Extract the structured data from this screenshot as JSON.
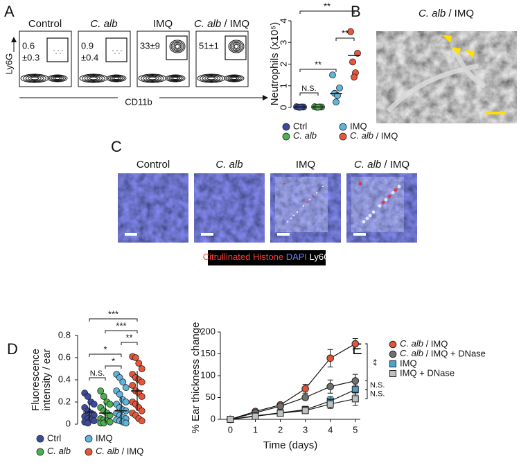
{
  "panel_labels": [
    "A",
    "B",
    "C",
    "D",
    "E"
  ],
  "flow": {
    "ylabel": "Ly6G",
    "xlabel": "CD11b",
    "plots": [
      {
        "title": "Control",
        "gate": [
          "0.6",
          "±0.3"
        ]
      },
      {
        "title": "C. alb",
        "gate": [
          "0.9",
          "±0.4"
        ]
      },
      {
        "title": "IMQ",
        "gate": [
          "33±9"
        ]
      },
      {
        "title": "C. alb / IMQ",
        "gate": [
          "51±1"
        ]
      }
    ]
  },
  "sem": {
    "title": "C. alb / IMQ"
  },
  "micrographs": {
    "titles": [
      "Control",
      "C. alb",
      "IMQ",
      "C. alb / IMQ"
    ],
    "legend": [
      "Citrullinated Histone",
      "DAPI",
      "Ly6G"
    ]
  },
  "chart_data": [
    {
      "type": "strip",
      "ylabel": "Neutrophils (x10⁵)",
      "ylim": [
        0,
        4
      ],
      "yticks": [
        0,
        1,
        2,
        3,
        4
      ],
      "series": [
        {
          "name": "Ctrl",
          "color": "#3b4a9c",
          "values": [
            0.03,
            0.02,
            0.01,
            0.02,
            0.01
          ],
          "mean": 0.02
        },
        {
          "name": "C. alb",
          "color": "#4caf50",
          "values": [
            0.03,
            0.02,
            0.01,
            0.02,
            0.01
          ],
          "mean": 0.02
        },
        {
          "name": "IMQ",
          "color": "#5fb4dc",
          "values": [
            1.5,
            0.9,
            0.65,
            0.55,
            0.25
          ],
          "mean": 0.65
        },
        {
          "name": "C. alb / IMQ",
          "color": "#e8563a",
          "values": [
            3.5,
            2.5,
            2.1,
            1.6,
            1.4
          ],
          "mean": 2.4
        }
      ],
      "annotations": [
        "N.S.",
        "**",
        "**",
        "**"
      ]
    },
    {
      "type": "strip",
      "ylabel": [
        "Fluorescence",
        "intensity / ear"
      ],
      "ylim": [
        0,
        0.8
      ],
      "yticks": [
        0,
        0.2,
        0.4,
        0.6,
        0.8
      ],
      "series": [
        {
          "name": "Ctrl",
          "color": "#3b4a9c",
          "values": [
            0.28,
            0.25,
            0.2,
            0.18,
            0.15,
            0.12,
            0.1,
            0.08,
            0.07,
            0.05,
            0.04,
            0.03,
            0.02,
            0.01
          ],
          "mean": 0.11,
          "error": 0.08
        },
        {
          "name": "C. alb",
          "color": "#4caf50",
          "values": [
            0.3,
            0.25,
            0.2,
            0.18,
            0.15,
            0.12,
            0.1,
            0.08,
            0.05,
            0.04,
            0.03,
            0.02,
            0.01,
            0.01
          ],
          "mean": 0.1,
          "error": 0.09
        },
        {
          "name": "IMQ",
          "color": "#5fb4dc",
          "values": [
            0.45,
            0.42,
            0.38,
            0.33,
            0.3,
            0.27,
            0.22,
            0.2,
            0.18,
            0.15,
            0.13,
            0.12,
            0.1,
            0.08,
            0.06,
            0.05,
            0.04,
            0.03,
            0.02,
            0.01
          ],
          "mean": 0.12,
          "error": 0.12
        },
        {
          "name": "C. alb / IMQ",
          "color": "#e8563a",
          "values": [
            0.61,
            0.6,
            0.55,
            0.5,
            0.45,
            0.42,
            0.4,
            0.38,
            0.35,
            0.3,
            0.28,
            0.25,
            0.2,
            0.18,
            0.15,
            0.12,
            0.1,
            0.08,
            0.05,
            0.03
          ],
          "mean": 0.3,
          "error": 0.18
        }
      ],
      "annotations": [
        "N.S.",
        "*",
        "*",
        "**",
        "***",
        "***"
      ]
    },
    {
      "type": "line",
      "xlabel": "Time (days)",
      "ylabel": "% Ear thickness change",
      "x": [
        0,
        1,
        2,
        3,
        4,
        5
      ],
      "xlim": [
        -0.4,
        5.2
      ],
      "xticks": [
        0,
        1,
        2,
        3,
        4,
        5
      ],
      "ylim": [
        0,
        200
      ],
      "yticks": [
        0,
        50,
        100,
        150,
        200
      ],
      "series": [
        {
          "name": "C. alb / IMQ",
          "color": "#e35336",
          "marker": "circle",
          "values": [
            0,
            18,
            33,
            70,
            140,
            173
          ],
          "error": [
            0,
            4,
            5,
            10,
            20,
            12
          ]
        },
        {
          "name": "C. alb / IMQ + DNase",
          "color": "#707070",
          "marker": "circle",
          "values": [
            0,
            15,
            30,
            50,
            75,
            88
          ],
          "error": [
            0,
            4,
            5,
            5,
            15,
            15
          ]
        },
        {
          "name": "IMQ",
          "color": "#4aa3cf",
          "marker": "square",
          "values": [
            0,
            8,
            15,
            22,
            42,
            68
          ],
          "error": [
            0,
            4,
            5,
            8,
            10,
            10
          ]
        },
        {
          "name": "IMQ + DNase",
          "color": "#c0c0c0",
          "marker": "square",
          "values": [
            0,
            7,
            14,
            20,
            35,
            47
          ],
          "error": [
            0,
            4,
            4,
            6,
            10,
            15
          ]
        }
      ],
      "annotations": [
        "**",
        "N.S.",
        "N.S."
      ]
    }
  ]
}
